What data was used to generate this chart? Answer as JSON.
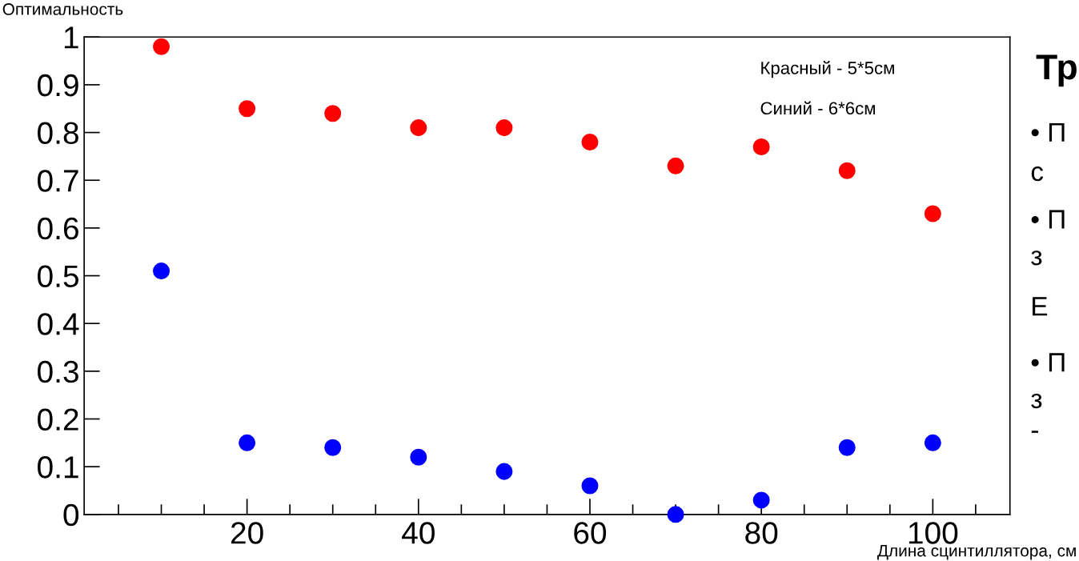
{
  "chart_data": {
    "type": "scatter",
    "ylabel": "Оптимальность",
    "xlabel": "Длина сцинтиллятора, см",
    "x": [
      10,
      20,
      30,
      40,
      50,
      60,
      70,
      80,
      90,
      100
    ],
    "series": [
      {
        "color": "#ff0000",
        "values": [
          0.98,
          0.85,
          0.84,
          0.81,
          0.81,
          0.78,
          0.73,
          0.77,
          0.72,
          0.63
        ]
      },
      {
        "color": "#0000ff",
        "values": [
          0.51,
          0.15,
          0.14,
          0.12,
          0.09,
          0.06,
          0.0,
          0.03,
          0.14,
          0.15
        ]
      }
    ],
    "xlim": [
      1,
      109
    ],
    "ylim": [
      0,
      1
    ],
    "xticks": [
      {
        "value": 5,
        "label": null
      },
      {
        "value": 10,
        "label": null
      },
      {
        "value": 15,
        "label": null
      },
      20,
      {
        "value": 25,
        "label": null
      },
      {
        "value": 30,
        "label": null
      },
      {
        "value": 35,
        "label": null
      },
      40,
      {
        "value": 45,
        "label": null
      },
      {
        "value": 50,
        "label": null
      },
      {
        "value": 55,
        "label": null
      },
      60,
      {
        "value": 65,
        "label": null
      },
      {
        "value": 70,
        "label": null
      },
      {
        "value": 75,
        "label": null
      },
      80,
      {
        "value": 85,
        "label": null
      },
      {
        "value": 90,
        "label": null
      },
      {
        "value": 95,
        "label": null
      },
      100,
      {
        "value": 105,
        "label": null
      }
    ],
    "yticks": [
      0,
      0.1,
      0.2,
      0.3,
      0.4,
      0.5,
      0.6,
      0.7,
      0.8,
      0.9,
      1
    ],
    "marker": "circle",
    "grid": false,
    "annotations": [
      "Красный - 5*5см",
      "Синий - 6*6см",
      "Тр",
      "• П",
      "с",
      "• П",
      "з",
      "Е",
      "• П",
      "з",
      "-"
    ]
  }
}
